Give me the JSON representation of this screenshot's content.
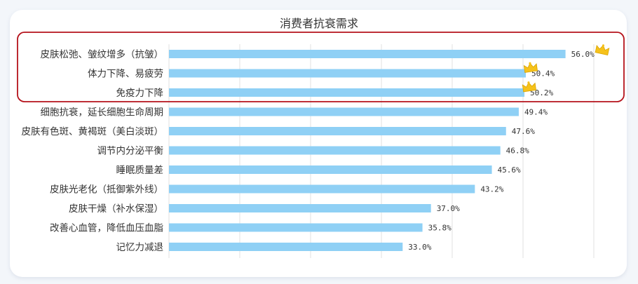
{
  "chart_data": {
    "type": "bar",
    "orientation": "horizontal",
    "title": "消费者抗衰需求",
    "categories": [
      "皮肤松弛、皱纹增多（抗皱）",
      "体力下降、易疲劳",
      "免疫力下降",
      "细胞抗衰，延长细胞生命周期",
      "皮肤有色斑、黄褐斑（美白淡斑）",
      "调节内分泌平衡",
      "睡眠质量差",
      "皮肤光老化（抵御紫外线）",
      "皮肤干燥（补水保湿）",
      "改善心血管，降低血压血脂",
      "记忆力减退"
    ],
    "values": [
      56.0,
      50.4,
      50.2,
      49.4,
      47.6,
      46.8,
      45.6,
      43.2,
      37.0,
      35.8,
      33.0
    ],
    "value_labels": [
      "56.0%",
      "50.4%",
      "50.2%",
      "49.4%",
      "47.6%",
      "46.8%",
      "45.6%",
      "43.2%",
      "37.0%",
      "35.8%",
      "33.0%"
    ],
    "xlim": [
      0,
      60
    ],
    "grid": true,
    "highlighted_top": 3,
    "colors": {
      "bar": "#8fd0f5",
      "grid": "#e2e2e2",
      "highlight_box": "#b5121b",
      "crown": "#f6c21b"
    }
  }
}
